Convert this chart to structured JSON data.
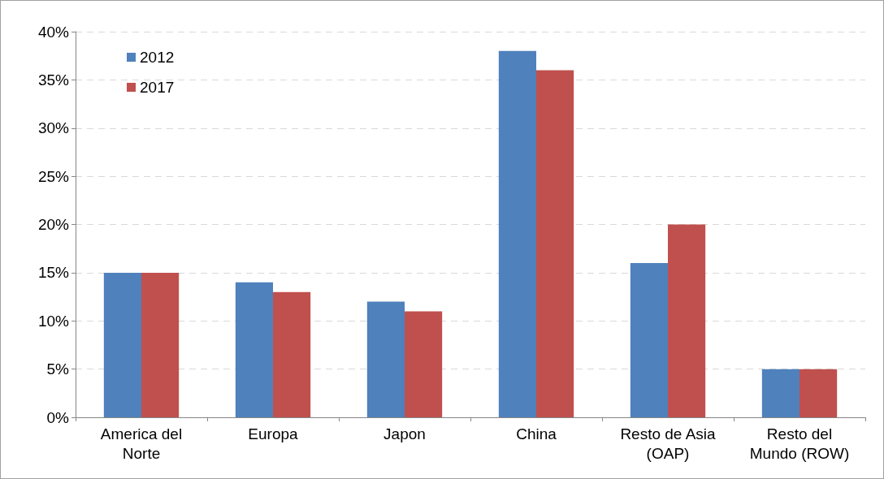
{
  "chart_data": {
    "type": "bar",
    "categories": [
      "America del\nNorte",
      "Europa",
      "Japon",
      "China",
      "Resto de Asia\n(OAP)",
      "Resto del\nMundo (ROW)"
    ],
    "series": [
      {
        "name": "2012",
        "color": "#4f81bd",
        "values": [
          15,
          14,
          12,
          38,
          16,
          5
        ]
      },
      {
        "name": "2017",
        "color": "#c0504d",
        "values": [
          15,
          13,
          11,
          36,
          20,
          5
        ]
      }
    ],
    "ylim": [
      0,
      40
    ],
    "yticks": [
      {
        "value": 0,
        "label": "0%"
      },
      {
        "value": 5,
        "label": "5%"
      },
      {
        "value": 10,
        "label": "10%"
      },
      {
        "value": 15,
        "label": "15%"
      },
      {
        "value": 20,
        "label": "20%"
      },
      {
        "value": 25,
        "label": "25%"
      },
      {
        "value": 30,
        "label": "30%"
      },
      {
        "value": 35,
        "label": "35%"
      },
      {
        "value": 40,
        "label": "40%"
      }
    ],
    "grid": "y",
    "legend": "top left"
  }
}
